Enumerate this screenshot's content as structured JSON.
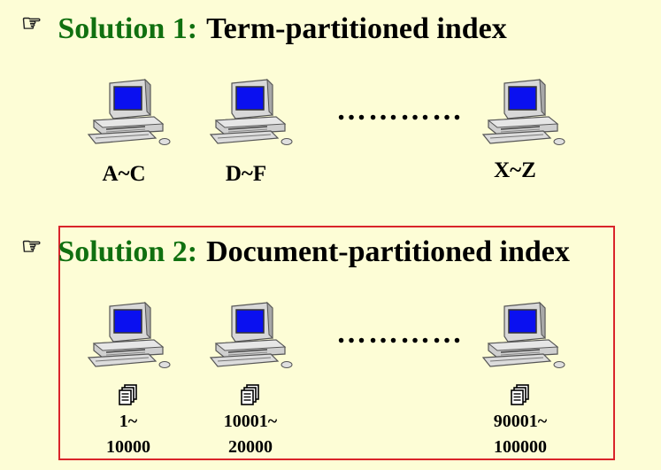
{
  "section1": {
    "prefix": "Solution 1:",
    "title": "Term-partitioned index",
    "ellipsis": "…………",
    "nodes": [
      "A~C",
      "D~F",
      "X~Z"
    ]
  },
  "section2": {
    "prefix": "Solution 2:",
    "title": "Document-partitioned index",
    "ellipsis": "…………",
    "nodes": [
      {
        "line1": "1~",
        "line2": "10000"
      },
      {
        "line1": "10001~",
        "line2": "20000"
      },
      {
        "line1": "90001~",
        "line2": "100000"
      }
    ]
  },
  "colors": {
    "accent_green": "#107010",
    "highlight_box": "#d9242a",
    "background": "#fdfdd6"
  },
  "icons": [
    "pointing-hand-icon",
    "computer-icon",
    "document-stack-icon"
  ]
}
